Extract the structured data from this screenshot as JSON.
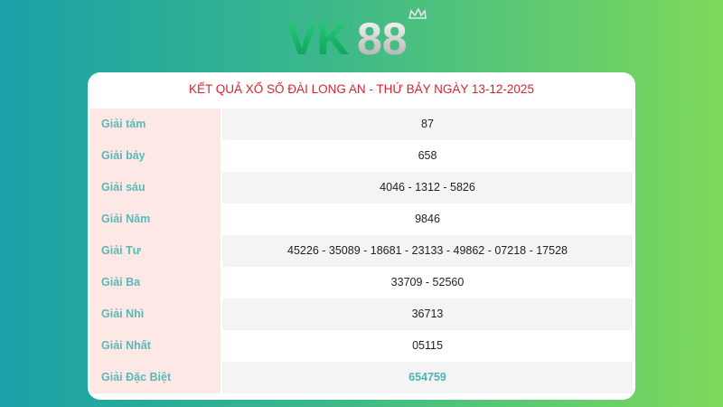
{
  "logo": {
    "text": "VK88",
    "colors": {
      "vk": "#11b366",
      "eight": "#d8d8d8"
    }
  },
  "title": "KẾT QUẢ XỔ SỐ ĐÀI LONG AN - THỨ BẢY NGÀY 13-12-2025",
  "rows": [
    {
      "label": "Giải tám",
      "value": "87"
    },
    {
      "label": "Giải bảy",
      "value": "658"
    },
    {
      "label": "Giải sáu",
      "value": "4046 - 1312 - 5826"
    },
    {
      "label": "Giải Năm",
      "value": "9846"
    },
    {
      "label": "Giải Tư",
      "value": "45226 - 35089 - 18681 - 23133 - 49862 - 07218 - 17528"
    },
    {
      "label": "Giải Ba",
      "value": "33709 - 52560"
    },
    {
      "label": "Giải Nhì",
      "value": "36713"
    },
    {
      "label": "Giải Nhất",
      "value": "05115"
    },
    {
      "label": "Giải Đặc Biệt",
      "value": "654759"
    }
  ],
  "colors": {
    "title": "#d9242f",
    "label": "#5ab9b8",
    "label_bg": "#fde8e6",
    "special": "#4eb3b5"
  }
}
